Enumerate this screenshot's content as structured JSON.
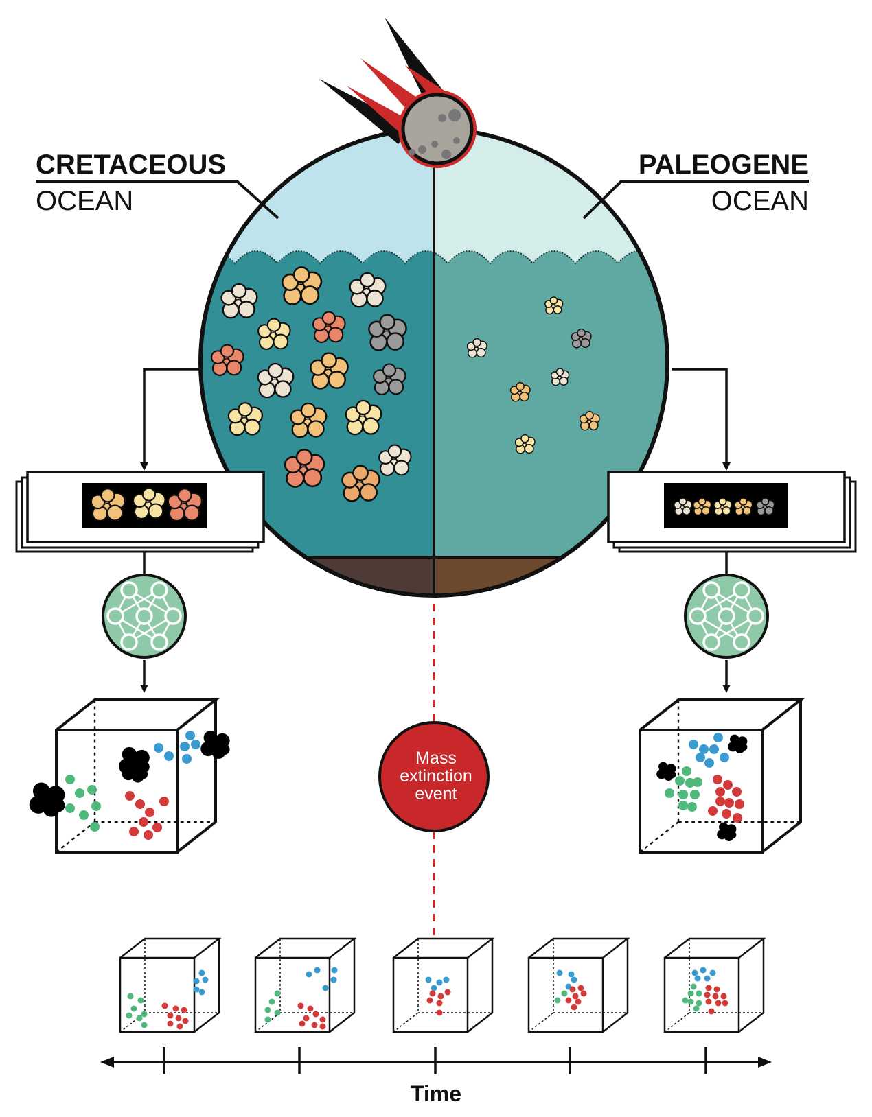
{
  "labels": {
    "left_title": "CRETACEOUS",
    "left_subtitle": "OCEAN",
    "right_title": "PALEOGENE",
    "right_subtitle": "OCEAN",
    "event_line1": "Mass",
    "event_line2": "extinction",
    "event_line3": "event",
    "axis_label": "Time"
  },
  "colors": {
    "sky_left": "#bfe3ec",
    "sky_right": "#d4ecea",
    "water_left": "#338f96",
    "water_right": "#5fa9a2",
    "seafloor_left": "#4e3b35",
    "seafloor_right": "#6b4a30",
    "meteor_trail": "#cc2b2b",
    "meteor_rock": "#a8a39b",
    "network_circle": "#8fcaa8",
    "event_circle": "#c8282a",
    "cluster_blue": "#3a9bd1",
    "cluster_green": "#4fb87b",
    "cluster_red": "#d33a3a",
    "cluster_black": "#000000"
  },
  "icons": {
    "meteor": "meteor-icon",
    "neural_network": "neural-network-icon",
    "foraminifera": "foraminifera-icon"
  },
  "timeline": {
    "cube_count": 5,
    "event_index": 2
  }
}
